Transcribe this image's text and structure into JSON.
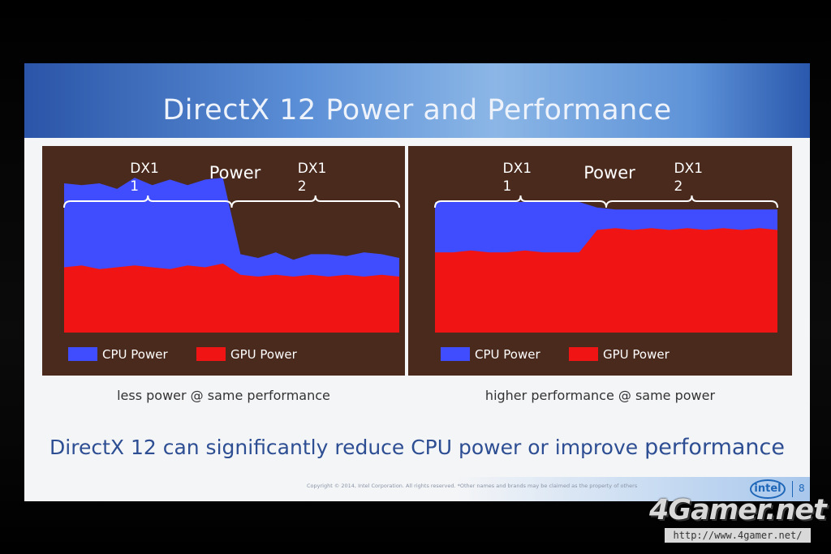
{
  "slide": {
    "title": "DirectX 12 Power and Performance",
    "conclusion_prefix": "DirectX 12 can significantly reduce CPU power or improve ",
    "conclusion_emphasis": "performance",
    "copyright": "Copyright © 2014, Intel Corporation. All rights reserved. *Other names and brands may be claimed as the property of others",
    "logo_text": "intel",
    "page_number": "8"
  },
  "watermark": {
    "logo": "4Gamer.net",
    "url": "http://www.4gamer.net/"
  },
  "colors": {
    "cpu": "#3f4dff",
    "gpu": "#f01414",
    "panel_bg": "#4a2a1c",
    "title_bar": "#4c7fcf",
    "conclusion_text": "#2d4e93"
  },
  "chart_data": [
    {
      "type": "area",
      "stacked": true,
      "title": "Power",
      "caption": "less power @ same performance",
      "segments": [
        "DX11",
        "DX12"
      ],
      "segment_labels": [
        [
          "DX1",
          "1"
        ],
        [
          "DX1",
          "2"
        ]
      ],
      "legend": [
        "CPU Power",
        "GPU Power"
      ],
      "x": [
        0,
        1,
        2,
        3,
        4,
        5,
        6,
        7,
        8,
        9,
        10,
        11,
        12,
        13,
        14,
        15,
        16,
        17,
        18,
        19
      ],
      "series": [
        {
          "name": "GPU Power",
          "values": [
            0.35,
            0.36,
            0.34,
            0.35,
            0.36,
            0.35,
            0.34,
            0.36,
            0.35,
            0.37,
            0.31,
            0.3,
            0.31,
            0.3,
            0.31,
            0.3,
            0.31,
            0.3,
            0.31,
            0.3
          ]
        },
        {
          "name": "CPU Power",
          "values": [
            0.45,
            0.43,
            0.46,
            0.42,
            0.47,
            0.44,
            0.48,
            0.43,
            0.47,
            0.46,
            0.11,
            0.1,
            0.12,
            0.09,
            0.11,
            0.12,
            0.1,
            0.13,
            0.11,
            0.1
          ]
        }
      ],
      "ylim": [
        0,
        1
      ]
    },
    {
      "type": "area",
      "stacked": true,
      "title": "Power",
      "caption": "higher performance @ same power",
      "segments": [
        "DX11",
        "DX12"
      ],
      "segment_labels": [
        [
          "DX1",
          "1"
        ],
        [
          "DX1",
          "2"
        ]
      ],
      "legend": [
        "CPU Power",
        "GPU Power"
      ],
      "x": [
        0,
        1,
        2,
        3,
        4,
        5,
        6,
        7,
        8,
        9,
        10,
        11,
        12,
        13,
        14,
        15,
        16,
        17,
        18,
        19
      ],
      "series": [
        {
          "name": "GPU Power",
          "values": [
            0.43,
            0.43,
            0.44,
            0.43,
            0.43,
            0.44,
            0.43,
            0.43,
            0.43,
            0.55,
            0.56,
            0.55,
            0.56,
            0.55,
            0.56,
            0.55,
            0.56,
            0.55,
            0.56,
            0.55
          ]
        },
        {
          "name": "CPU Power",
          "values": [
            0.27,
            0.27,
            0.26,
            0.27,
            0.27,
            0.26,
            0.27,
            0.27,
            0.27,
            0.12,
            0.1,
            0.11,
            0.1,
            0.11,
            0.1,
            0.11,
            0.1,
            0.11,
            0.1,
            0.11
          ]
        }
      ],
      "ylim": [
        0,
        1
      ]
    }
  ]
}
